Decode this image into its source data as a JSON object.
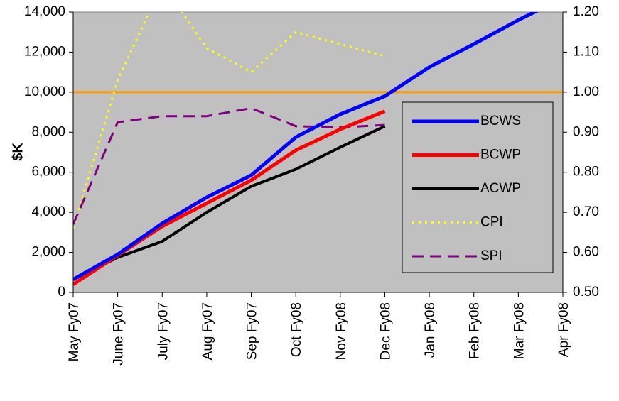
{
  "chart_data": {
    "type": "line",
    "title": "",
    "xlabel": "",
    "ylabel": "$K",
    "categories": [
      "May Fy07",
      "June Fy07",
      "July Fy07",
      "Aug Fy07",
      "Sep Fy07",
      "Oct Fy08",
      "Nov Fy08",
      "Dec Fy08",
      "Jan Fy08",
      "Feb Fy08",
      "Mar Fy08",
      "Apr Fy08"
    ],
    "ylim": [
      0,
      14000
    ],
    "yticks": [
      "0",
      "2,000",
      "4,000",
      "6,000",
      "8,000",
      "10,000",
      "12,000",
      "14,000"
    ],
    "y2lim": [
      0.5,
      1.2
    ],
    "y2ticks": [
      "0.50",
      "0.60",
      "0.70",
      "0.80",
      "0.90",
      "1.00",
      "1.10",
      "1.20"
    ],
    "grid": false,
    "plot_background": "#c0c0c0",
    "legend_position": "right",
    "reference_line": {
      "axis": "right",
      "value": 1.0,
      "color": "#ff9900"
    },
    "series": [
      {
        "name": "BCWS",
        "axis": "left",
        "color": "#0000ff",
        "style": "solid",
        "width": 5,
        "x": [
          0,
          1,
          2,
          3,
          4,
          5,
          6,
          7,
          8,
          9,
          10,
          11
        ],
        "values": [
          650,
          1900,
          3450,
          4750,
          5850,
          7750,
          8900,
          9800,
          11250,
          12400,
          13600,
          14700
        ]
      },
      {
        "name": "BCWP",
        "axis": "left",
        "color": "#ff0000",
        "style": "solid",
        "width": 5,
        "x": [
          0,
          1,
          2,
          3,
          4,
          5,
          6,
          7
        ],
        "values": [
          400,
          1850,
          3300,
          4450,
          5600,
          7100,
          8150,
          9050
        ]
      },
      {
        "name": "ACWP",
        "axis": "left",
        "color": "#000000",
        "style": "solid",
        "width": 4,
        "x": [
          0,
          1,
          2,
          3,
          4,
          5,
          6,
          7
        ],
        "values": [
          650,
          1750,
          2550,
          4000,
          5300,
          6150,
          7250,
          8300
        ]
      },
      {
        "name": "CPI",
        "axis": "right",
        "color": "#ffff00",
        "style": "dotted",
        "width": 3,
        "x": [
          0,
          1,
          2,
          3,
          4,
          5,
          6,
          7
        ],
        "values": [
          0.66,
          1.03,
          1.27,
          1.11,
          1.05,
          1.15,
          1.12,
          1.09
        ]
      },
      {
        "name": "SPI",
        "axis": "right",
        "color": "#800080",
        "style": "dashed",
        "width": 3,
        "x": [
          0,
          1,
          2,
          3,
          4,
          5,
          6,
          7
        ],
        "values": [
          0.67,
          0.925,
          0.94,
          0.94,
          0.96,
          0.915,
          0.912,
          0.918
        ]
      }
    ]
  }
}
